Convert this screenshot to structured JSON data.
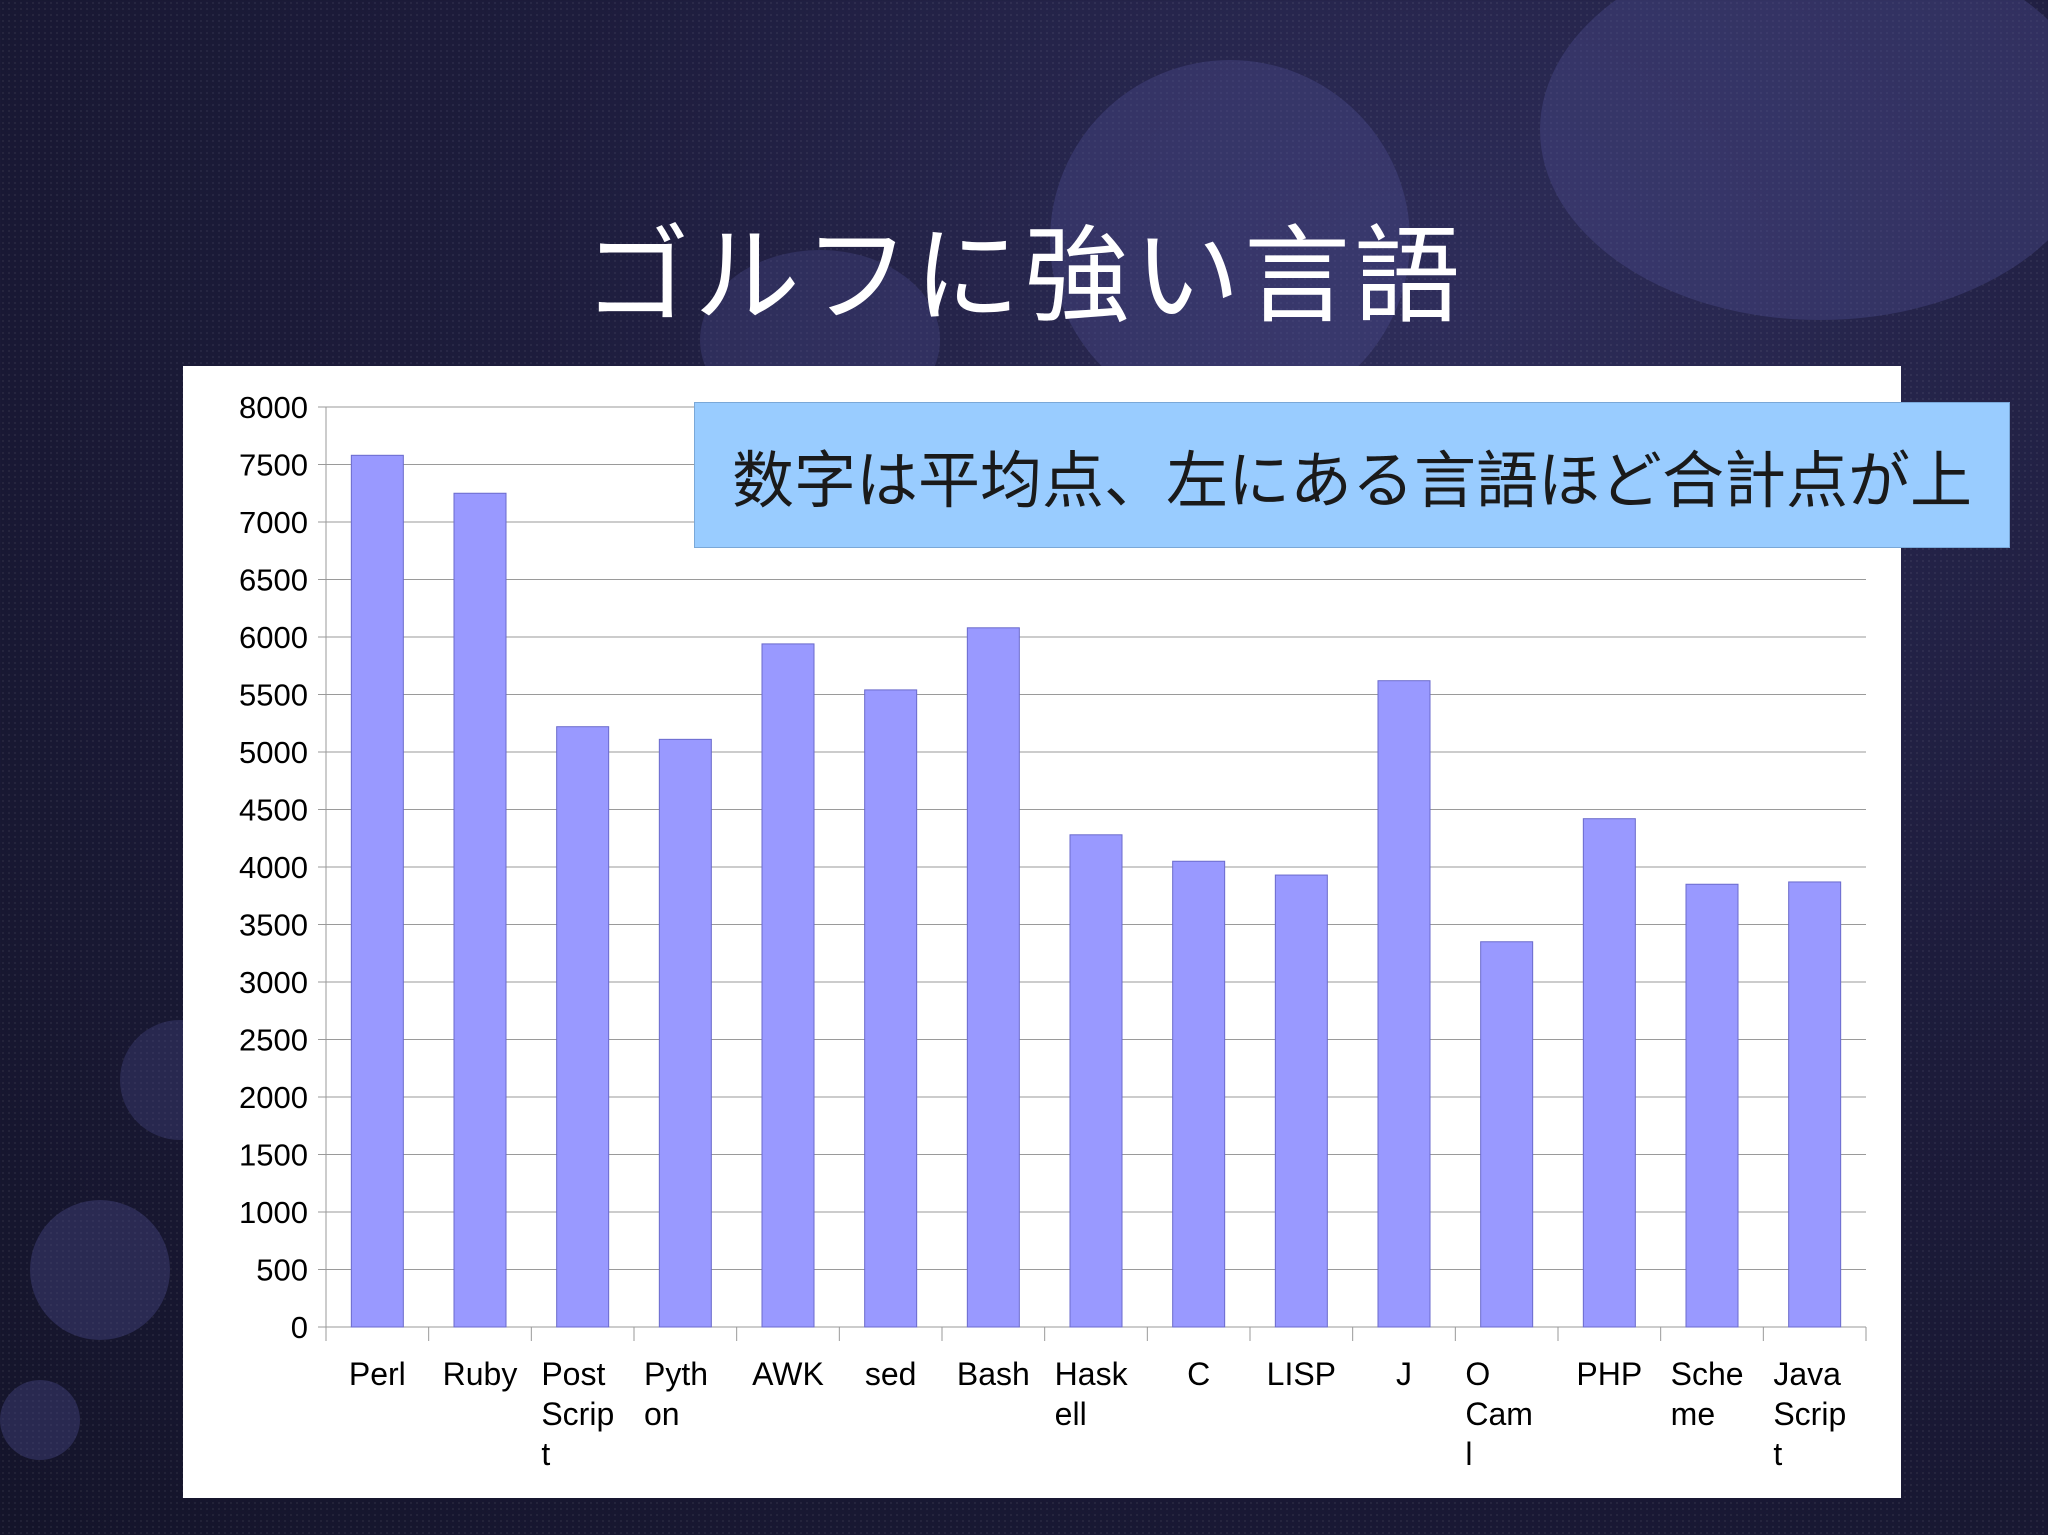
{
  "slide": {
    "title": "ゴルフに強い言語",
    "callout": "数字は平均点、左にある言語ほど合計点が上"
  },
  "chart_data": {
    "type": "bar",
    "categories": [
      [
        "Perl"
      ],
      [
        "Ruby"
      ],
      [
        "Post",
        "Scrip",
        "t"
      ],
      [
        "Pyth",
        "on"
      ],
      [
        "AWK"
      ],
      [
        "sed"
      ],
      [
        "Bash"
      ],
      [
        "Hask",
        "ell"
      ],
      [
        "C"
      ],
      [
        "LISP"
      ],
      [
        "J"
      ],
      [
        "O",
        "Cam",
        "l"
      ],
      [
        "PHP"
      ],
      [
        "Sche",
        "me"
      ],
      [
        "Java",
        "Scrip",
        "t"
      ]
    ],
    "values": [
      7580,
      7250,
      5220,
      5110,
      5940,
      5540,
      6080,
      4280,
      4050,
      3930,
      5620,
      3350,
      4420,
      3850,
      3870
    ],
    "ylim": [
      0,
      8000
    ],
    "yticks": [
      0,
      500,
      1000,
      1500,
      2000,
      2500,
      3000,
      3500,
      4000,
      4500,
      5000,
      5500,
      6000,
      6500,
      7000,
      7500,
      8000
    ],
    "grid": true,
    "bar_color": "#9999ff",
    "title": "",
    "xlabel": "",
    "ylabel": ""
  }
}
